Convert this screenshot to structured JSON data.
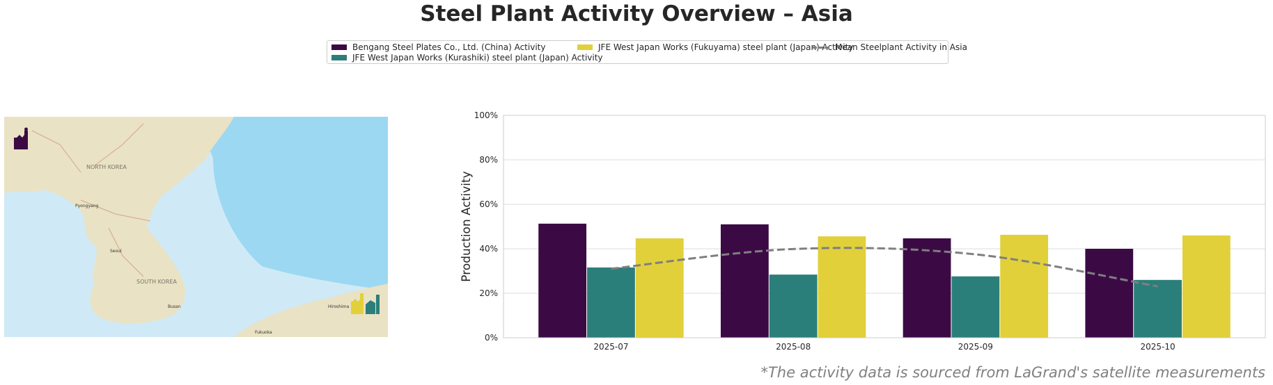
{
  "title": "Steel Plant Activity Overview – Asia",
  "footer": "*The activity data is sourced from LaGrand's satellite measurements",
  "legend": {
    "items": [
      {
        "label": "Bengang Steel Plates Co., Ltd. (China) Activity",
        "color": "#3b0a45"
      },
      {
        "label": "JFE West Japan Works (Kurashiki) steel plant (Japan) Activity",
        "color": "#2b7f7a"
      },
      {
        "label": "JFE West Japan Works (Fukuyama) steel plant (Japan) Activity",
        "color": "#e1d03a"
      },
      {
        "label": "Mean Steelplant Activity in Asia",
        "color": "#7f7f7f"
      }
    ]
  },
  "map": {
    "labels": [
      "NORTH KOREA",
      "SOUTH KOREA",
      "Pyongyang",
      "Seoul",
      "Busan",
      "Hiroshima",
      "Fukuoka"
    ],
    "markers": [
      {
        "plant": "Bengang Steel Plates Co., Ltd. (China)",
        "icon": "factory-icon",
        "color": "#3b0a45"
      },
      {
        "plant": "JFE West Japan Works (Fukuyama)",
        "icon": "factory-icon",
        "color": "#e1d03a"
      },
      {
        "plant": "JFE West Japan Works (Kurashiki)",
        "icon": "factory-icon",
        "color": "#2b7f7a"
      }
    ]
  },
  "chart_data": {
    "type": "bar",
    "title": "",
    "xlabel": "",
    "ylabel": "Production Activity",
    "ylim": [
      0,
      100
    ],
    "yticks": [
      "0%",
      "20%",
      "40%",
      "60%",
      "80%",
      "100%"
    ],
    "grid": true,
    "categories": [
      "2025-07",
      "2025-08",
      "2025-09",
      "2025-10"
    ],
    "series": [
      {
        "name": "Bengang Steel Plates Co., Ltd. (China) Activity",
        "values": [
          51.3,
          51.0,
          44.7,
          40.0
        ],
        "color": "#3b0a45"
      },
      {
        "name": "JFE West Japan Works (Kurashiki) steel plant (Japan) Activity",
        "values": [
          31.6,
          28.4,
          27.6,
          26.0
        ],
        "color": "#2b7f7a"
      },
      {
        "name": "JFE West Japan Works (Fukuyama) steel plant (Japan) Activity",
        "values": [
          44.7,
          45.6,
          46.3,
          46.0
        ],
        "color": "#e1d03a"
      }
    ],
    "line": {
      "name": "Mean Steelplant Activity in Asia",
      "type": "dashed-smooth",
      "values": [
        31.0,
        39.9,
        37.5,
        23.1
      ],
      "color": "#7f7f7f"
    },
    "legend_position": "top-center"
  }
}
